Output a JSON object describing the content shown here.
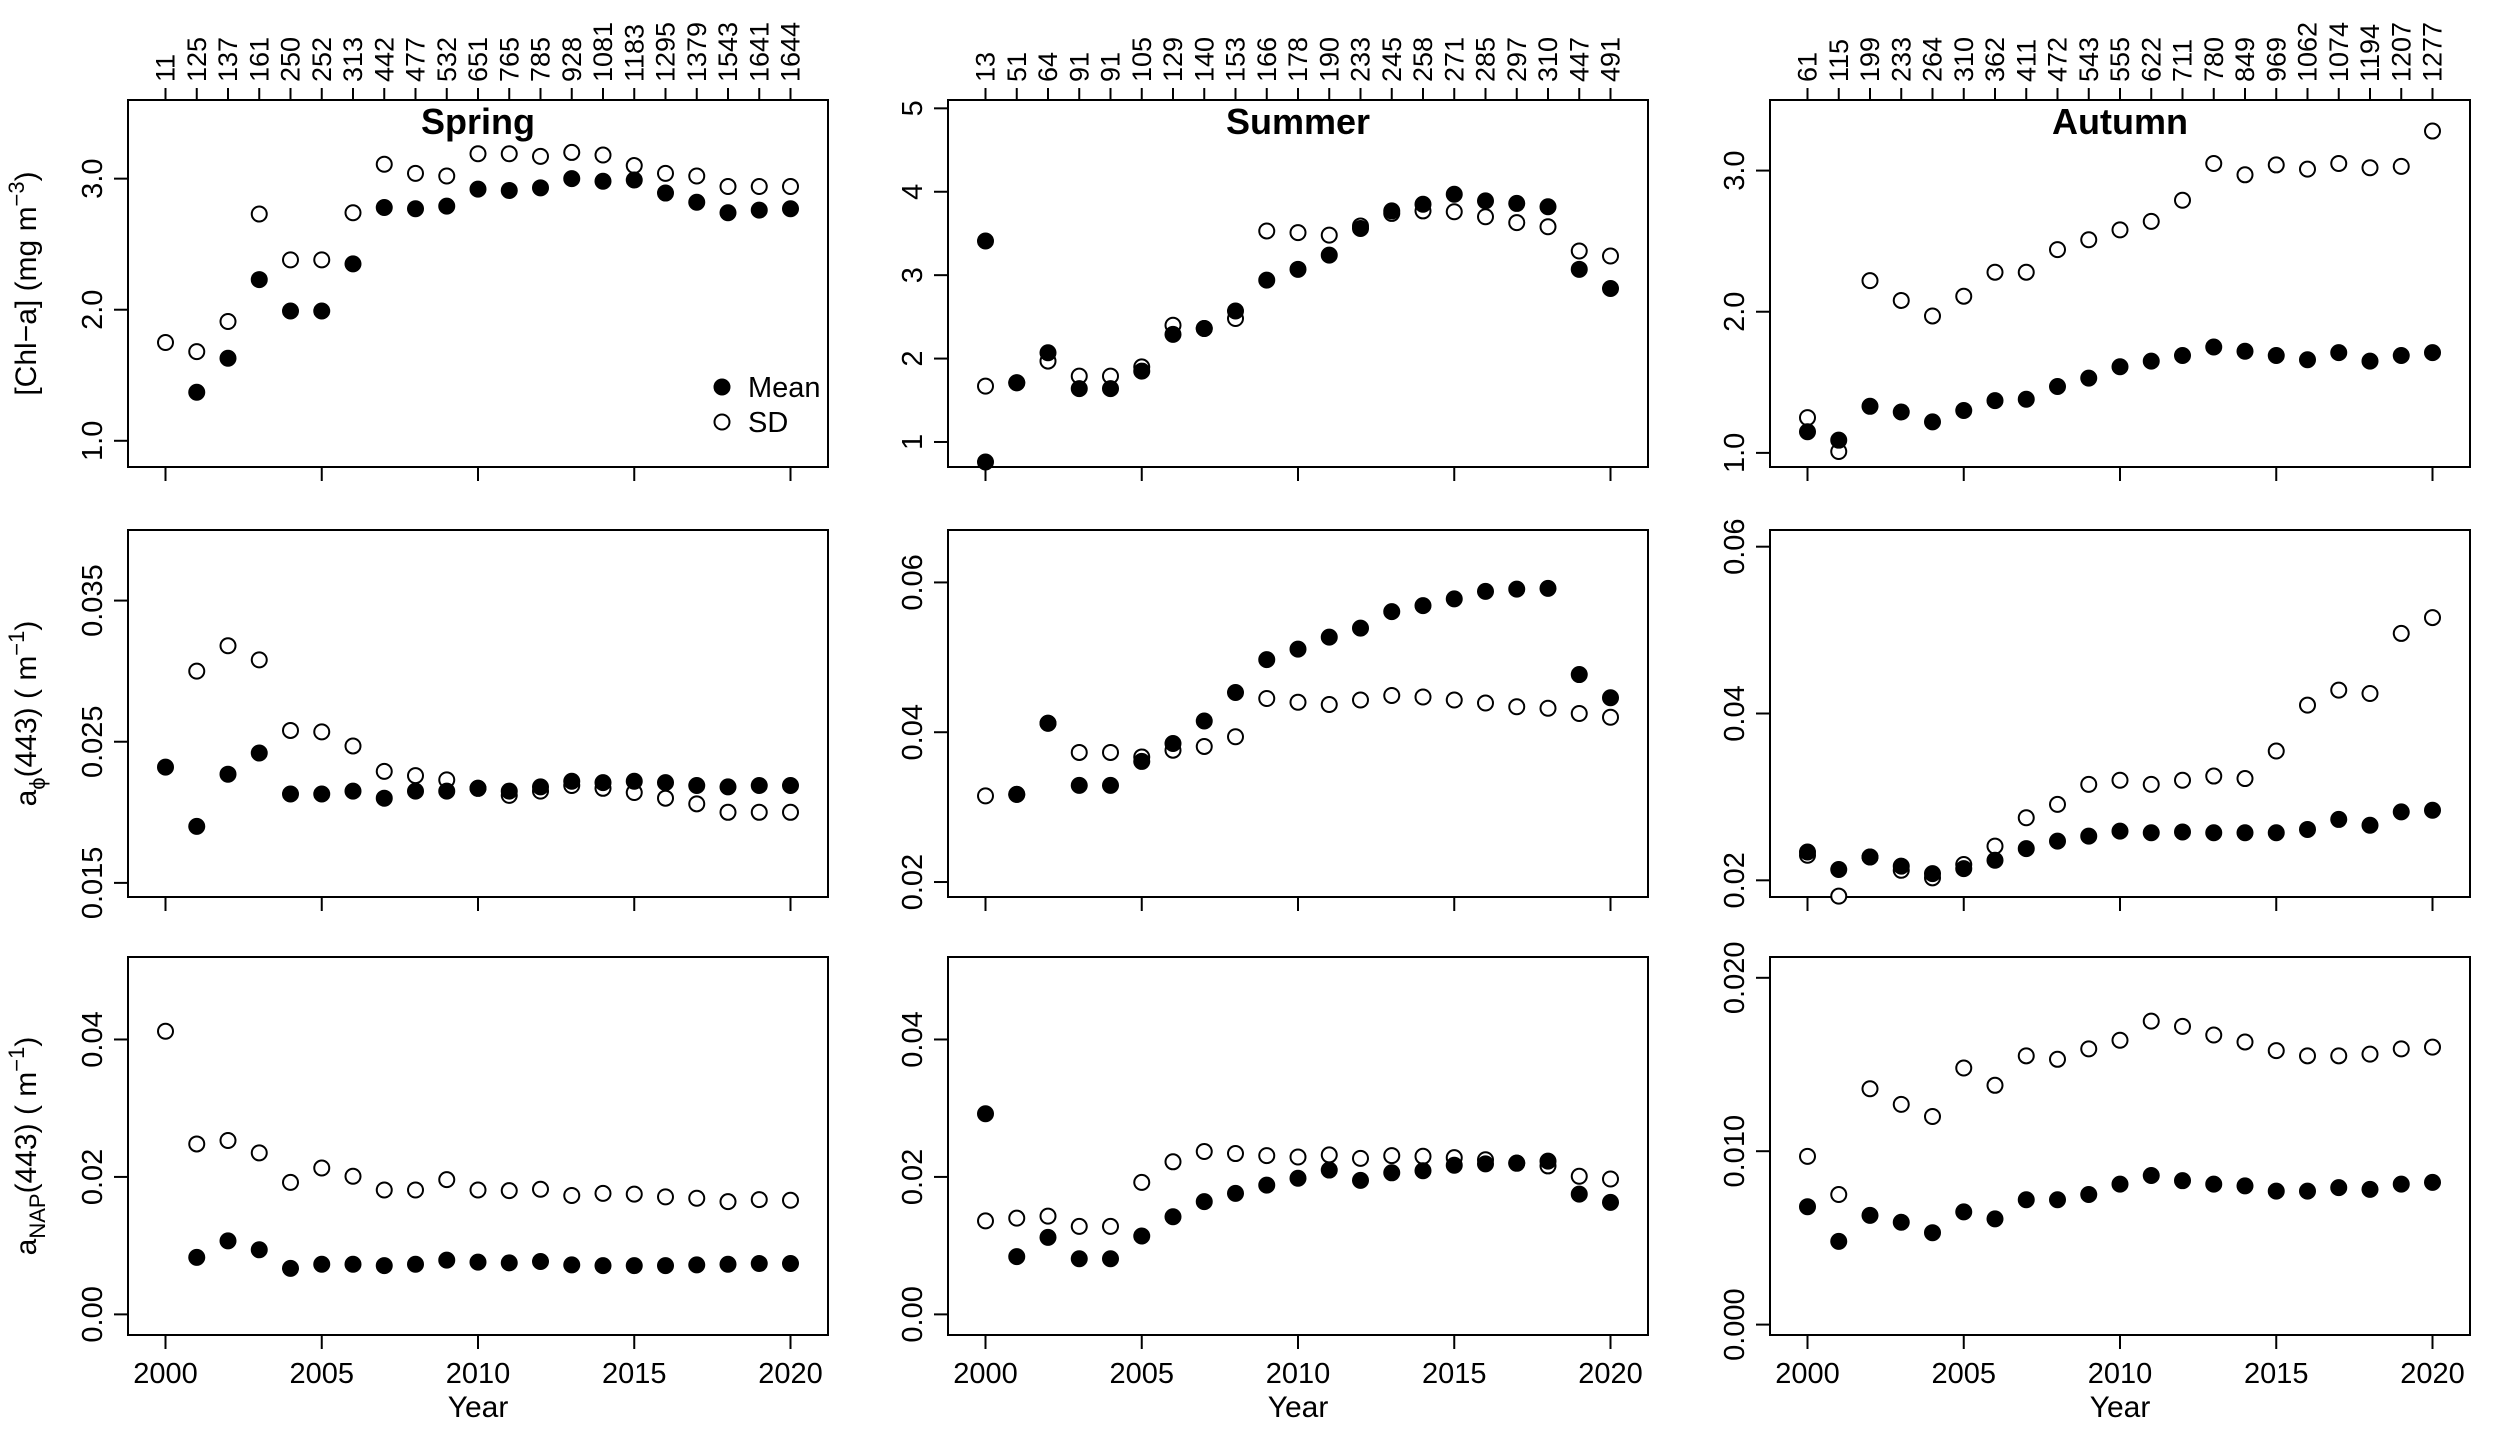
{
  "chart_data": {
    "type": "scatter",
    "layout": "3x3 grid of panels (rows = variables, columns = seasons)",
    "x": [
      2000,
      2001,
      2002,
      2003,
      2004,
      2005,
      2006,
      2007,
      2008,
      2009,
      2010,
      2011,
      2012,
      2013,
      2014,
      2015,
      2016,
      2017,
      2018,
      2019,
      2020
    ],
    "xlabel": "Year",
    "xticks": [
      2000,
      2005,
      2010,
      2015,
      2020
    ],
    "legend": {
      "position": "inside bottom-right of top-left panel",
      "entries": [
        {
          "name": "Mean",
          "marker": "filled-circle"
        },
        {
          "name": "SD",
          "marker": "open-circle"
        }
      ]
    },
    "seasons": [
      {
        "title": "Spring",
        "top_counts": [
          "11",
          "125",
          "137",
          "161",
          "250",
          "252",
          "313",
          "442",
          "477",
          "532",
          "651",
          "765",
          "785",
          "928",
          "1081",
          "1183",
          "1295",
          "1379",
          "1543",
          "1641",
          "1644"
        ]
      },
      {
        "title": "Summer",
        "top_counts": [
          "13",
          "51",
          "64",
          "91",
          "91",
          "105",
          "129",
          "140",
          "153",
          "166",
          "178",
          "190",
          "233",
          "245",
          "258",
          "271",
          "285",
          "297",
          "310",
          "447",
          "491"
        ]
      },
      {
        "title": "Autumn",
        "top_counts": [
          "61",
          "115",
          "199",
          "233",
          "264",
          "310",
          "362",
          "411",
          "472",
          "543",
          "555",
          "622",
          "711",
          "780",
          "849",
          "969",
          "1062",
          "1074",
          "1194",
          "1207",
          "1277"
        ]
      }
    ],
    "rows": [
      {
        "ylabel_main": "[Chl−a] (mg m",
        "ylabel_sup": "−3",
        "ylabel_tail": ")"
      },
      {
        "ylabel_main": "a",
        "ylabel_sub": "ϕ",
        "ylabel_rest": "(443) ( m",
        "ylabel_sup": "−1",
        "ylabel_tail": ")"
      },
      {
        "ylabel_main": "a",
        "ylabel_sub": "NAP",
        "ylabel_rest": "(443) ( m",
        "ylabel_sup": "−1",
        "ylabel_tail": ")"
      }
    ],
    "panels": [
      {
        "row": 0,
        "col": 0,
        "ylim": [
          0.8,
          3.6
        ],
        "yticks": [
          "1.0",
          "2.0",
          "3.0"
        ],
        "ytick_values": [
          1,
          2,
          3
        ],
        "series": [
          {
            "name": "Mean",
            "values": [
              null,
              1.37,
              1.63,
              2.23,
              1.99,
              1.99,
              2.35,
              2.78,
              2.77,
              2.79,
              2.92,
              2.91,
              2.93,
              3.0,
              2.98,
              2.99,
              2.89,
              2.82,
              2.74,
              2.76,
              2.77
            ]
          },
          {
            "name": "SD",
            "values": [
              1.75,
              1.68,
              1.91,
              2.73,
              2.38,
              2.38,
              2.74,
              3.11,
              3.04,
              3.02,
              3.19,
              3.19,
              3.17,
              3.2,
              3.18,
              3.1,
              3.04,
              3.02,
              2.94,
              2.94,
              2.94
            ]
          }
        ]
      },
      {
        "row": 0,
        "col": 1,
        "ylim": [
          0.7,
          5.1
        ],
        "yticks": [
          "1",
          "2",
          "3",
          "4",
          "5"
        ],
        "ytick_values": [
          1,
          2,
          3,
          4,
          5
        ],
        "series": [
          {
            "name": "Mean",
            "values": [
              3.41,
              1.71,
              2.07,
              1.64,
              1.64,
              1.85,
              2.29,
              2.36,
              2.57,
              2.94,
              3.07,
              3.24,
              3.56,
              3.77,
              3.85,
              3.97,
              3.89,
              3.86,
              3.82,
              3.07,
              2.84
            ]
          },
          {
            "name": "SD",
            "values": [
              1.67,
              1.71,
              1.97,
              1.79,
              1.79,
              1.9,
              2.4,
              2.36,
              2.48,
              3.53,
              3.51,
              3.48,
              3.59,
              3.74,
              3.77,
              3.76,
              3.7,
              3.63,
              3.58,
              3.29,
              3.23
            ]
          },
          {
            "name": "Mean (lower marker, 2000)",
            "values": [
              0.76
            ]
          }
        ]
      },
      {
        "row": 0,
        "col": 2,
        "ylim": [
          0.9,
          3.5
        ],
        "yticks": [
          "1.0",
          "2.0",
          "3.0"
        ],
        "ytick_values": [
          1,
          2,
          3
        ],
        "series": [
          {
            "name": "Mean",
            "values": [
              1.15,
              1.09,
              1.33,
              1.29,
              1.22,
              1.3,
              1.37,
              1.38,
              1.47,
              1.53,
              1.61,
              1.65,
              1.69,
              1.75,
              1.72,
              1.69,
              1.66,
              1.71,
              1.65,
              1.69,
              1.71
            ]
          },
          {
            "name": "SD",
            "values": [
              1.25,
              1.01,
              2.22,
              2.08,
              1.97,
              2.11,
              2.28,
              2.28,
              2.44,
              2.51,
              2.58,
              2.64,
              2.79,
              3.05,
              2.97,
              3.04,
              3.01,
              3.05,
              3.02,
              3.03,
              3.28
            ]
          }
        ]
      },
      {
        "row": 1,
        "col": 0,
        "ylim": [
          0.014,
          0.04
        ],
        "yticks": [
          "0.015",
          "0.025",
          "0.035"
        ],
        "ytick_values": [
          0.015,
          0.025,
          0.035
        ],
        "series": [
          {
            "name": "Mean",
            "values": [
              0.0232,
              0.019,
              0.0227,
              0.0242,
              0.0213,
              0.0213,
              0.0215,
              0.021,
              0.0215,
              0.0215,
              0.0217,
              0.0215,
              0.0218,
              0.0222,
              0.0221,
              0.0222,
              0.0221,
              0.0219,
              0.0218,
              0.0219,
              0.0219
            ]
          },
          {
            "name": "SD",
            "values": [
              null,
              0.03,
              0.0318,
              0.0308,
              0.0258,
              0.0257,
              0.0247,
              0.0229,
              0.0226,
              0.0223,
              0.0217,
              0.0212,
              0.0215,
              0.0219,
              0.0217,
              0.0214,
              0.021,
              0.0206,
              0.02,
              0.02,
              0.02
            ]
          }
        ]
      },
      {
        "row": 1,
        "col": 1,
        "ylim": [
          0.018,
          0.067
        ],
        "yticks": [
          "0.02",
          "0.04",
          "0.06"
        ],
        "ytick_values": [
          0.02,
          0.04,
          0.06
        ],
        "series": [
          {
            "name": "Mean",
            "values": [
              null,
              0.0317,
              0.0412,
              0.0329,
              0.0329,
              0.0361,
              0.0385,
              0.0415,
              0.0453,
              0.0497,
              0.0511,
              0.0527,
              0.0539,
              0.0561,
              0.0569,
              0.0578,
              0.0588,
              0.0591,
              0.0592,
              0.0477,
              0.0446
            ]
          },
          {
            "name": "SD",
            "values": [
              0.0315,
              0.0317,
              0.0412,
              0.0373,
              0.0373,
              0.0367,
              0.0376,
              0.0381,
              0.0394,
              0.0445,
              0.044,
              0.0437,
              0.0443,
              0.0449,
              0.0447,
              0.0443,
              0.0439,
              0.0434,
              0.0432,
              0.0425,
              0.042
            ]
          }
        ]
      },
      {
        "row": 1,
        "col": 2,
        "ylim": [
          0.018,
          0.062
        ],
        "yticks": [
          "0.02",
          "0.04",
          "0.06"
        ],
        "ytick_values": [
          0.02,
          0.04,
          0.06
        ],
        "series": [
          {
            "name": "Mean",
            "values": [
              0.0234,
              0.0213,
              0.0228,
              0.0217,
              0.0208,
              0.0214,
              0.0224,
              0.0238,
              0.0247,
              0.0253,
              0.0259,
              0.0257,
              0.0258,
              0.0257,
              0.0257,
              0.0257,
              0.0261,
              0.0273,
              0.0266,
              0.0282,
              0.0284
            ]
          },
          {
            "name": "SD",
            "values": [
              0.023,
              0.0181,
              0.0228,
              0.0212,
              0.0203,
              0.0219,
              0.0241,
              0.0275,
              0.0291,
              0.0315,
              0.032,
              0.0315,
              0.032,
              0.0325,
              0.0322,
              0.0355,
              0.041,
              0.0428,
              0.0424,
              0.0496,
              0.0515
            ]
          }
        ]
      },
      {
        "row": 2,
        "col": 0,
        "ylim": [
          -0.003,
          0.052
        ],
        "yticks": [
          "0.00",
          "0.02",
          "0.04"
        ],
        "ytick_values": [
          0,
          0.02,
          0.04
        ],
        "series": [
          {
            "name": "Mean",
            "values": [
              null,
              0.0083,
              0.0107,
              0.0094,
              0.0067,
              0.0073,
              0.0073,
              0.0071,
              0.0073,
              0.0079,
              0.0076,
              0.0075,
              0.0077,
              0.0072,
              0.0071,
              0.0071,
              0.0071,
              0.0072,
              0.0073,
              0.0074,
              0.0074
            ]
          },
          {
            "name": "SD",
            "values": [
              0.0412,
              0.0248,
              0.0253,
              0.0235,
              0.0192,
              0.0213,
              0.0201,
              0.0181,
              0.0181,
              0.0196,
              0.0181,
              0.018,
              0.0182,
              0.0173,
              0.0176,
              0.0175,
              0.0171,
              0.0169,
              0.0164,
              0.0167,
              0.0166
            ]
          }
        ]
      },
      {
        "row": 2,
        "col": 1,
        "ylim": [
          -0.003,
          0.052
        ],
        "yticks": [
          "0.00",
          "0.02",
          "0.04"
        ],
        "ytick_values": [
          0,
          0.02,
          0.04
        ],
        "series": [
          {
            "name": "Mean",
            "values": [
              0.0292,
              0.0084,
              0.0112,
              0.0081,
              0.0081,
              0.0114,
              0.0142,
              0.0164,
              0.0176,
              0.0188,
              0.0198,
              0.021,
              0.0195,
              0.0206,
              0.0209,
              0.0217,
              0.0219,
              0.022,
              0.0223,
              0.0175,
              0.0163
            ]
          },
          {
            "name": "SD",
            "values": [
              0.0136,
              0.014,
              0.0143,
              0.0128,
              0.0128,
              0.0192,
              0.0222,
              0.0237,
              0.0234,
              0.0231,
              0.0229,
              0.0232,
              0.0227,
              0.0231,
              0.023,
              0.0228,
              0.0225,
              0.022,
              0.0216,
              0.0201,
              0.0197
            ]
          }
        ]
      },
      {
        "row": 2,
        "col": 2,
        "ylim": [
          -0.0006,
          0.0212
        ],
        "yticks": [
          "0.000",
          "0.010",
          "0.020"
        ],
        "ytick_values": [
          0,
          0.01,
          0.02
        ],
        "series": [
          {
            "name": "Mean",
            "values": [
              0.0068,
              0.0048,
              0.0063,
              0.0059,
              0.0053,
              0.0065,
              0.0061,
              0.0072,
              0.0072,
              0.0075,
              0.0081,
              0.0086,
              0.0083,
              0.0081,
              0.008,
              0.0077,
              0.0077,
              0.0079,
              0.0078,
              0.0081,
              0.0082
            ]
          },
          {
            "name": "SD",
            "values": [
              0.0097,
              0.0075,
              0.0136,
              0.0127,
              0.012,
              0.0148,
              0.0138,
              0.0155,
              0.0153,
              0.0159,
              0.0164,
              0.0175,
              0.0172,
              0.0167,
              0.0163,
              0.0158,
              0.0155,
              0.0155,
              0.0156,
              0.0159,
              0.016
            ]
          }
        ]
      }
    ]
  }
}
